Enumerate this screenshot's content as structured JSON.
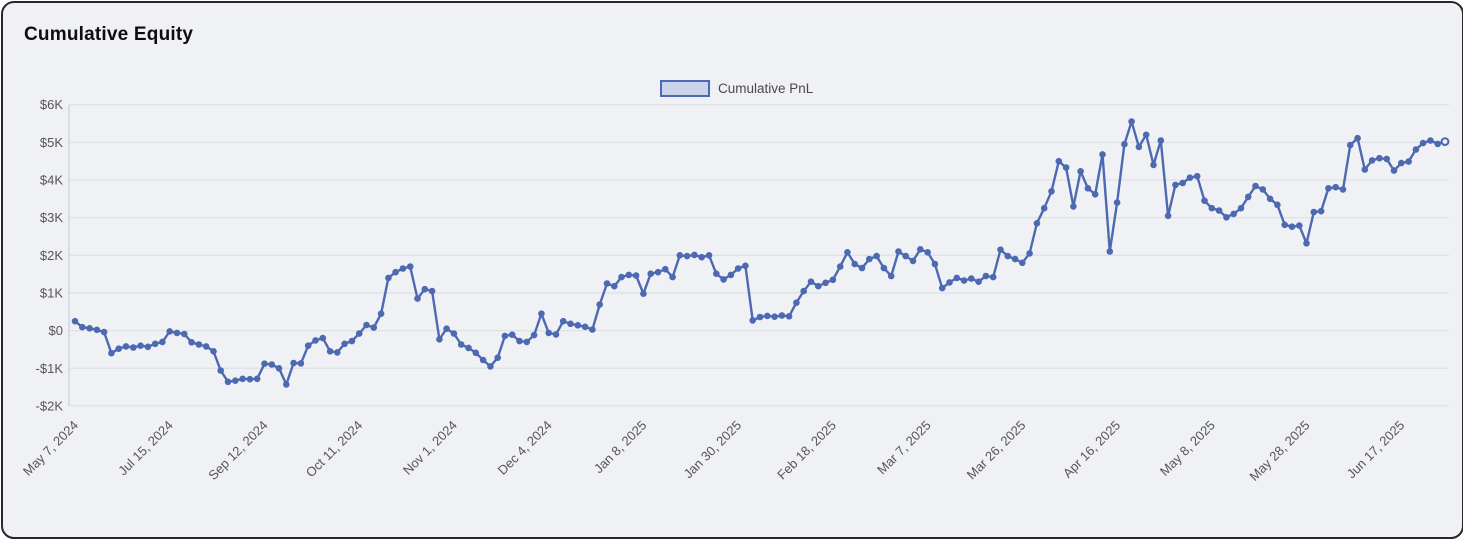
{
  "card": {
    "title": "Cumulative Equity"
  },
  "legend": {
    "label": "Cumulative PnL",
    "swatch_fill": "#ccd4eb",
    "swatch_border": "#4c69b1"
  },
  "colors": {
    "line": "#4c69b1",
    "marker": "#4c69b1",
    "last_marker_fill": "#eef0f7",
    "grid": "#e0e1e6",
    "axis_border": "#cfd0d6",
    "tick_text": "#555555",
    "card_background": "#f0f1f5",
    "card_border": "#26262b"
  },
  "chart_data": {
    "type": "line",
    "title": "Cumulative Equity",
    "legend_position": "top-center",
    "grid": "horizontal",
    "ylim": [
      -2000,
      6000
    ],
    "y_ticks_usd": [
      6000,
      5000,
      4000,
      3000,
      2000,
      1000,
      0,
      -1000,
      -2000
    ],
    "y_tick_labels": [
      "$6K",
      "$5K",
      "$4K",
      "$3K",
      "$2K",
      "$1K",
      "$0",
      "-$1K",
      "-$2K"
    ],
    "x_tick_every": 13,
    "x_tick_labels": [
      "May 7, 2024",
      "Jul 15, 2024",
      "Sep 12, 2024",
      "Oct 11, 2024",
      "Nov 1, 2024",
      "Dec 4, 2024",
      "Jan 8, 2025",
      "Jan 30, 2025",
      "Feb 18, 2025",
      "Mar 7, 2025",
      "Mar 26, 2025",
      "Apr 16, 2025",
      "May 8, 2025",
      "May 28, 2025",
      "Jun 17, 2025"
    ],
    "last_point_style": "open-circle",
    "series": [
      {
        "name": "Cumulative PnL",
        "color": "#4c69b1",
        "values_usd": [
          250,
          90,
          60,
          20,
          -40,
          -600,
          -480,
          -420,
          -450,
          -400,
          -430,
          -350,
          -300,
          -20,
          -60,
          -90,
          -310,
          -370,
          -420,
          -550,
          -1060,
          -1360,
          -1330,
          -1280,
          -1290,
          -1280,
          -880,
          -900,
          -1000,
          -1430,
          -860,
          -870,
          -400,
          -260,
          -200,
          -550,
          -580,
          -350,
          -280,
          -80,
          150,
          80,
          450,
          1400,
          1550,
          1650,
          1700,
          850,
          1100,
          1050,
          -230,
          50,
          -80,
          -370,
          -460,
          -590,
          -780,
          -950,
          -720,
          -140,
          -110,
          -280,
          -300,
          -120,
          450,
          -60,
          -100,
          250,
          180,
          140,
          100,
          30,
          690,
          1250,
          1180,
          1420,
          1480,
          1460,
          980,
          1510,
          1550,
          1630,
          1420,
          2000,
          1980,
          2010,
          1950,
          2000,
          1510,
          1360,
          1480,
          1650,
          1720,
          270,
          360,
          390,
          370,
          400,
          380,
          740,
          1050,
          1300,
          1180,
          1270,
          1350,
          1700,
          2080,
          1770,
          1660,
          1900,
          1980,
          1660,
          1450,
          2100,
          1980,
          1850,
          2160,
          2080,
          1770,
          1130,
          1280,
          1400,
          1330,
          1380,
          1300,
          1450,
          1420,
          2150,
          1980,
          1900,
          1800,
          2050,
          2850,
          3250,
          3700,
          4500,
          4330,
          3300,
          4230,
          3780,
          3620,
          4680,
          2100,
          3400,
          4950,
          5550,
          4880,
          5200,
          4400,
          5050,
          3050,
          3870,
          3920,
          4060,
          4100,
          3450,
          3250,
          3190,
          3010,
          3100,
          3250,
          3550,
          3840,
          3750,
          3500,
          3340,
          2810,
          2760,
          2790,
          2320,
          3150,
          3170,
          3780,
          3810,
          3750,
          4930,
          5110,
          4280,
          4520,
          4580,
          4560,
          4250,
          4450,
          4490,
          4810,
          4980,
          5050,
          4960,
          5020
        ]
      }
    ]
  }
}
